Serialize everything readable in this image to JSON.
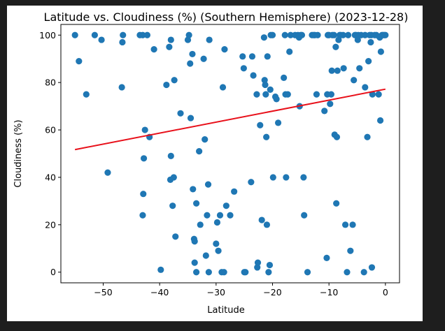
{
  "chart_data": {
    "type": "scatter",
    "title": "Latitude vs. Cloudiness (%) (Southern Hemisphere) (2023-12-28)",
    "xlabel": "Latitude",
    "ylabel": "Cloudiness (%)",
    "xlim": [
      -57.5,
      2.5
    ],
    "ylim": [
      -4.5,
      104.5
    ],
    "xticks": [
      -50,
      -40,
      -30,
      -20,
      -10,
      0
    ],
    "yticks": [
      0,
      20,
      40,
      60,
      80,
      100
    ],
    "grid": false,
    "colors": {
      "points": "#1f77b4",
      "regression": "#e8101a"
    },
    "regression": {
      "x1": -55,
      "y1": 51.7,
      "x2": 0,
      "y2": 77.2
    },
    "points": [
      [
        -55,
        100
      ],
      [
        -54.3,
        89
      ],
      [
        -53,
        75
      ],
      [
        -51.5,
        100
      ],
      [
        -50.3,
        98
      ],
      [
        -49.2,
        42
      ],
      [
        -46.5,
        100
      ],
      [
        -46.6,
        97
      ],
      [
        -46.7,
        78
      ],
      [
        -43.5,
        100
      ],
      [
        -43,
        100
      ],
      [
        -43,
        24
      ],
      [
        -42.9,
        33
      ],
      [
        -42.8,
        48
      ],
      [
        -42.6,
        60
      ],
      [
        -42.2,
        100
      ],
      [
        -41.8,
        57
      ],
      [
        -41,
        94
      ],
      [
        -39.8,
        1
      ],
      [
        -38.8,
        79
      ],
      [
        -38.3,
        95
      ],
      [
        -38,
        98
      ],
      [
        -38,
        49
      ],
      [
        -38.1,
        39
      ],
      [
        -37.7,
        28
      ],
      [
        -37.5,
        40
      ],
      [
        -37.4,
        81
      ],
      [
        -37.2,
        15
      ],
      [
        -36.3,
        67
      ],
      [
        -35,
        98
      ],
      [
        -34.8,
        100
      ],
      [
        -34.6,
        88
      ],
      [
        -34.5,
        65
      ],
      [
        -34.2,
        92
      ],
      [
        -34.1,
        35
      ],
      [
        -33.9,
        14
      ],
      [
        -33.8,
        13
      ],
      [
        -33.8,
        4
      ],
      [
        -33.5,
        0
      ],
      [
        -33.5,
        29
      ],
      [
        -33,
        51
      ],
      [
        -32.8,
        20
      ],
      [
        -32.2,
        90
      ],
      [
        -32,
        56
      ],
      [
        -31.8,
        7
      ],
      [
        -31.6,
        24
      ],
      [
        -31.4,
        37
      ],
      [
        -31.3,
        0
      ],
      [
        -31.2,
        98
      ],
      [
        -30,
        12
      ],
      [
        -29.8,
        21
      ],
      [
        -29.6,
        9
      ],
      [
        -29.3,
        24
      ],
      [
        -29,
        0
      ],
      [
        -28.8,
        78
      ],
      [
        -28.5,
        94
      ],
      [
        -28.2,
        28
      ],
      [
        -28.6,
        0
      ],
      [
        -27.5,
        24
      ],
      [
        -26.8,
        34
      ],
      [
        -25.3,
        91
      ],
      [
        -25.1,
        86
      ],
      [
        -25,
        0
      ],
      [
        -24.8,
        0
      ],
      [
        -23.8,
        38
      ],
      [
        -23.6,
        91
      ],
      [
        -23.4,
        83
      ],
      [
        -22.8,
        75
      ],
      [
        -22.7,
        2
      ],
      [
        -22.6,
        4
      ],
      [
        -22.2,
        62
      ],
      [
        -21.9,
        22
      ],
      [
        -21.5,
        99
      ],
      [
        -21.4,
        81
      ],
      [
        -21.3,
        79
      ],
      [
        -21.2,
        75
      ],
      [
        -21.1,
        57
      ],
      [
        -21,
        20
      ],
      [
        -20.9,
        91
      ],
      [
        -20.7,
        0
      ],
      [
        -20.5,
        3
      ],
      [
        -20.4,
        77
      ],
      [
        -20.3,
        100
      ],
      [
        -20,
        100
      ],
      [
        -19.9,
        40
      ],
      [
        -19.5,
        74
      ],
      [
        -19.3,
        73
      ],
      [
        -19,
        63
      ],
      [
        -18,
        82
      ],
      [
        -17.8,
        100
      ],
      [
        -17.7,
        75
      ],
      [
        -17.6,
        40
      ],
      [
        -17.3,
        75
      ],
      [
        -17,
        93
      ],
      [
        -16.8,
        100
      ],
      [
        -16,
        100
      ],
      [
        -15.5,
        100
      ],
      [
        -15.3,
        99
      ],
      [
        -15.2,
        70
      ],
      [
        -15,
        100
      ],
      [
        -14.8,
        100
      ],
      [
        -14.5,
        40
      ],
      [
        -14.4,
        24
      ],
      [
        -13.8,
        0
      ],
      [
        -13,
        100
      ],
      [
        -12.7,
        100
      ],
      [
        -12.5,
        100
      ],
      [
        -12.2,
        75
      ],
      [
        -12,
        100
      ],
      [
        -10.8,
        68
      ],
      [
        -10.4,
        6
      ],
      [
        -10.3,
        75
      ],
      [
        -10.2,
        100
      ],
      [
        -10,
        100
      ],
      [
        -9.8,
        71
      ],
      [
        -9.6,
        75
      ],
      [
        -9.5,
        85
      ],
      [
        -9.4,
        100
      ],
      [
        -9.1,
        100
      ],
      [
        -9,
        58
      ],
      [
        -8.8,
        95
      ],
      [
        -8.7,
        29
      ],
      [
        -8.6,
        57
      ],
      [
        -8.5,
        85
      ],
      [
        -8.3,
        98
      ],
      [
        -8.1,
        100
      ],
      [
        -7.9,
        100
      ],
      [
        -7.5,
        100
      ],
      [
        -7.4,
        86
      ],
      [
        -7.1,
        20
      ],
      [
        -6.8,
        0
      ],
      [
        -6.6,
        100
      ],
      [
        -6.2,
        9
      ],
      [
        -5.8,
        20
      ],
      [
        -5.6,
        81
      ],
      [
        -5.4,
        100
      ],
      [
        -5.2,
        100
      ],
      [
        -4.9,
        98
      ],
      [
        -4.8,
        100
      ],
      [
        -4.6,
        86
      ],
      [
        -4.3,
        100
      ],
      [
        -3.8,
        0
      ],
      [
        -3.6,
        100
      ],
      [
        -3.6,
        78
      ],
      [
        -3.2,
        57
      ],
      [
        -3,
        89
      ],
      [
        -2.8,
        100
      ],
      [
        -2.6,
        97
      ],
      [
        -2.5,
        100
      ],
      [
        -2.4,
        2
      ],
      [
        -2.3,
        75
      ],
      [
        -1.9,
        100
      ],
      [
        -1.6,
        100
      ],
      [
        -1.2,
        75
      ],
      [
        -1,
        99
      ],
      [
        -0.9,
        64
      ],
      [
        -0.8,
        93
      ],
      [
        -0.6,
        100
      ],
      [
        -0.4,
        100
      ],
      [
        -0.2,
        100
      ],
      [
        0,
        100
      ]
    ]
  }
}
